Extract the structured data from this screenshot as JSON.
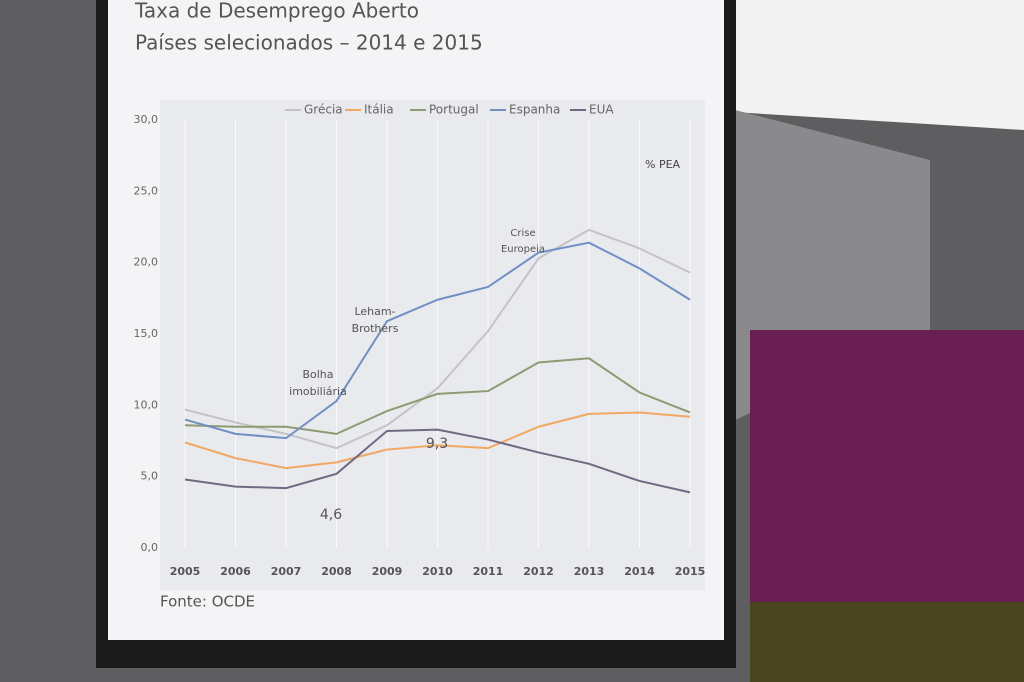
{
  "chart_data": {
    "type": "line",
    "title": "Taxa de Desemprego Aberto",
    "subtitle": "Países selecionados – 2014 e 2015",
    "unit_label": "% PEA",
    "source": "Fonte: OCDE",
    "categories": [
      "2005",
      "2006",
      "2007",
      "2008",
      "2009",
      "2010",
      "2011",
      "2012",
      "2013",
      "2014",
      "2015"
    ],
    "series": [
      {
        "name": "Grécia",
        "color": "#c4c4c8",
        "values": [
          9.7,
          8.8,
          8.0,
          7.0,
          8.6,
          11.2,
          15.2,
          20.3,
          22.3,
          21.0,
          19.3
        ]
      },
      {
        "name": "Itália",
        "color": "#f0a862",
        "values": [
          7.4,
          6.3,
          5.6,
          6.0,
          6.9,
          7.2,
          7.0,
          8.5,
          9.4,
          9.5,
          9.2
        ]
      },
      {
        "name": "Portugal",
        "color": "#8e9a72",
        "values": [
          8.6,
          8.5,
          8.5,
          8.0,
          9.6,
          10.8,
          11.0,
          13.0,
          13.3,
          10.9,
          9.5
        ]
      },
      {
        "name": "Espanha",
        "color": "#7090c4",
        "values": [
          9.0,
          8.0,
          7.7,
          10.3,
          15.9,
          17.4,
          18.3,
          20.7,
          21.4,
          19.6,
          17.4
        ]
      },
      {
        "name": "EUA",
        "color": "#6f6a82",
        "values": [
          4.8,
          4.3,
          4.2,
          5.2,
          8.2,
          8.3,
          7.6,
          6.7,
          5.9,
          4.7,
          3.9
        ]
      }
    ],
    "ylim": [
      0,
      30
    ],
    "yticks": [
      {
        "value": 0,
        "label": "0,0"
      },
      {
        "value": 5,
        "label": "5,0"
      },
      {
        "value": 10,
        "label": "10,0"
      },
      {
        "value": 15,
        "label": "15,0"
      },
      {
        "value": 20,
        "label": "20,0"
      },
      {
        "value": 25,
        "label": "25,0"
      },
      {
        "value": 30,
        "label": "30,0"
      }
    ],
    "grid": true,
    "annotations": [
      "Bolha",
      "imobiliária",
      "Leham-",
      "Brothers",
      "Crise",
      "Europeia",
      "9,3",
      "4,6"
    ]
  }
}
